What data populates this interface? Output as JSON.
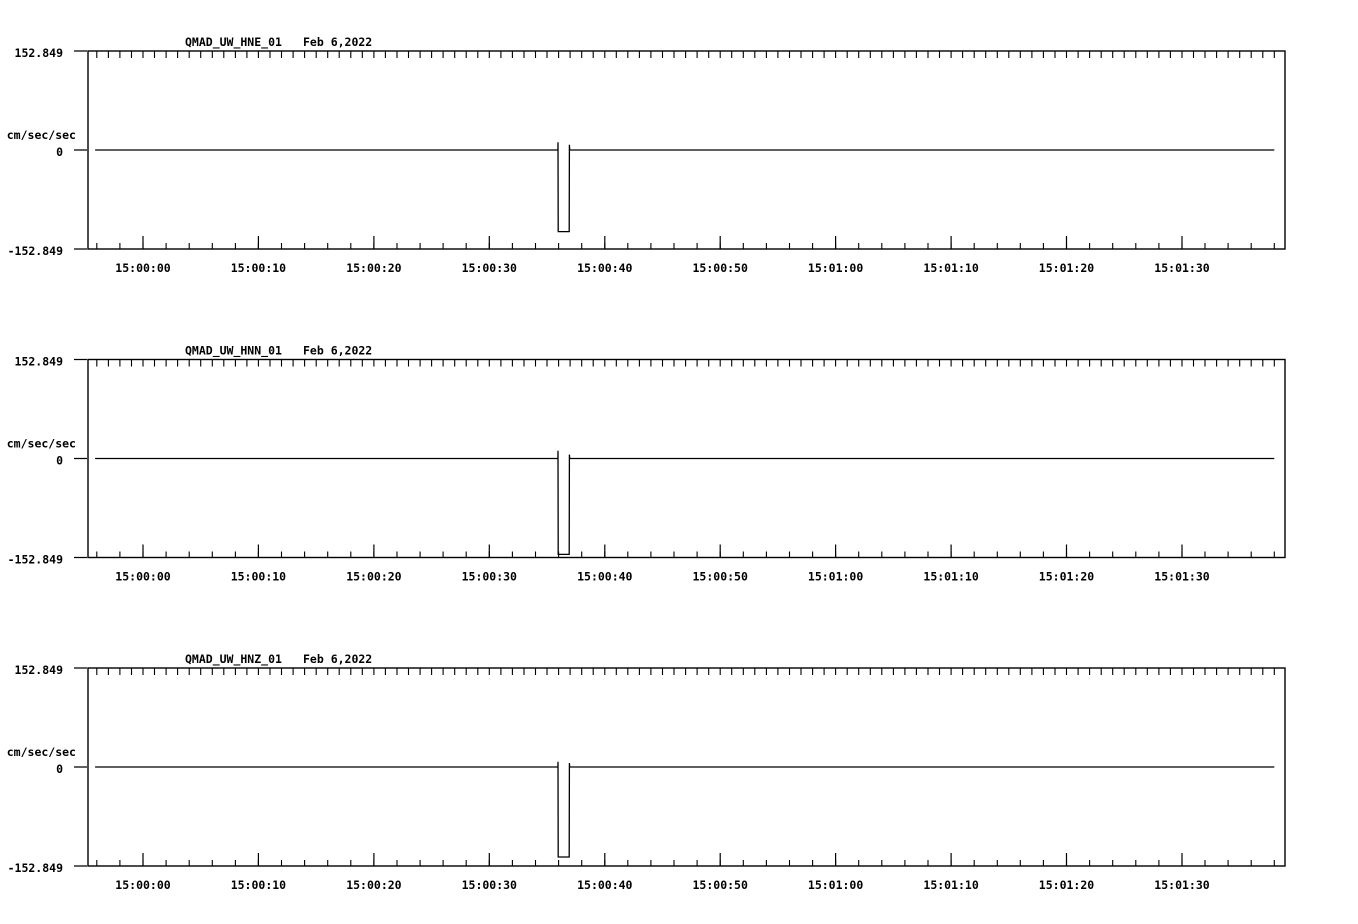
{
  "colors": {
    "background": "#ffffff",
    "ink": "#000000"
  },
  "chart_data": [
    {
      "type": "line",
      "station_channel": "QMAD_UW_HNE_01",
      "date_label": "Feb 6,2022",
      "ylabel": "cm/sec/sec",
      "ytick_labels": [
        "152.849",
        "0",
        "-152.849"
      ],
      "ytick_values": [
        152.849,
        0,
        -152.849
      ],
      "ylim": [
        -152.849,
        152.849
      ],
      "xlim_seconds_rel_15_00_00": [
        -4.76,
        98.93
      ],
      "top_tick_interval_s": 1,
      "bottom_minor_tick_interval_s": 2,
      "grid": false,
      "xticks": [
        {
          "t": 0,
          "label": "15:00:00"
        },
        {
          "t": 10,
          "label": "15:00:10"
        },
        {
          "t": 20,
          "label": "15:00:20"
        },
        {
          "t": 30,
          "label": "15:00:30"
        },
        {
          "t": 40,
          "label": "15:00:40"
        },
        {
          "t": 50,
          "label": "15:00:50"
        },
        {
          "t": 60,
          "label": "15:01:00"
        },
        {
          "t": 70,
          "label": "15:01:10"
        },
        {
          "t": 80,
          "label": "15:01:20"
        },
        {
          "t": 90,
          "label": "15:01:30"
        }
      ],
      "series": [
        {
          "name": "QMAD_UW_HNE_01",
          "points_t_v": [
            [
              -4.15,
              0
            ],
            [
              35.94,
              0
            ],
            [
              35.95,
              12
            ],
            [
              35.97,
              -126
            ],
            [
              36.92,
              -126
            ],
            [
              36.94,
              8
            ],
            [
              36.96,
              0
            ],
            [
              98.0,
              0
            ]
          ]
        }
      ]
    },
    {
      "type": "line",
      "station_channel": "QMAD_UW_HNN_01",
      "date_label": "Feb 6,2022",
      "ylabel": "cm/sec/sec",
      "ytick_labels": [
        "152.849",
        "0",
        "-152.849"
      ],
      "ytick_values": [
        152.849,
        0,
        -152.849
      ],
      "ylim": [
        -152.849,
        152.849
      ],
      "xlim_seconds_rel_15_00_00": [
        -4.76,
        98.93
      ],
      "top_tick_interval_s": 1,
      "bottom_minor_tick_interval_s": 2,
      "grid": false,
      "xticks": [
        {
          "t": 0,
          "label": "15:00:00"
        },
        {
          "t": 10,
          "label": "15:00:10"
        },
        {
          "t": 20,
          "label": "15:00:20"
        },
        {
          "t": 30,
          "label": "15:00:30"
        },
        {
          "t": 40,
          "label": "15:00:40"
        },
        {
          "t": 50,
          "label": "15:00:50"
        },
        {
          "t": 60,
          "label": "15:01:00"
        },
        {
          "t": 70,
          "label": "15:01:10"
        },
        {
          "t": 80,
          "label": "15:01:20"
        },
        {
          "t": 90,
          "label": "15:01:30"
        }
      ],
      "series": [
        {
          "name": "QMAD_UW_HNN_01",
          "points_t_v": [
            [
              -4.15,
              0
            ],
            [
              35.94,
              0
            ],
            [
              35.95,
              12
            ],
            [
              35.97,
              -148
            ],
            [
              36.92,
              -148
            ],
            [
              36.94,
              6
            ],
            [
              36.96,
              0
            ],
            [
              98.0,
              0
            ]
          ]
        }
      ]
    },
    {
      "type": "line",
      "station_channel": "QMAD_UW_HNZ_01",
      "date_label": "Feb 6,2022",
      "ylabel": "cm/sec/sec",
      "ytick_labels": [
        "152.849",
        "0",
        "-152.849"
      ],
      "ytick_values": [
        152.849,
        0,
        -152.849
      ],
      "ylim": [
        -152.849,
        152.849
      ],
      "xlim_seconds_rel_15_00_00": [
        -4.76,
        98.93
      ],
      "top_tick_interval_s": 1,
      "bottom_minor_tick_interval_s": 2,
      "grid": false,
      "xticks": [
        {
          "t": 0,
          "label": "15:00:00"
        },
        {
          "t": 10,
          "label": "15:00:10"
        },
        {
          "t": 20,
          "label": "15:00:20"
        },
        {
          "t": 30,
          "label": "15:00:30"
        },
        {
          "t": 40,
          "label": "15:00:40"
        },
        {
          "t": 50,
          "label": "15:00:50"
        },
        {
          "t": 60,
          "label": "15:01:00"
        },
        {
          "t": 70,
          "label": "15:01:10"
        },
        {
          "t": 80,
          "label": "15:01:20"
        },
        {
          "t": 90,
          "label": "15:01:30"
        }
      ],
      "series": [
        {
          "name": "QMAD_UW_HNZ_01",
          "points_t_v": [
            [
              -4.15,
              0
            ],
            [
              35.94,
              0
            ],
            [
              35.95,
              8
            ],
            [
              35.97,
              -139
            ],
            [
              36.92,
              -139
            ],
            [
              36.94,
              6
            ],
            [
              36.96,
              0
            ],
            [
              98.0,
              0
            ]
          ]
        }
      ]
    }
  ]
}
